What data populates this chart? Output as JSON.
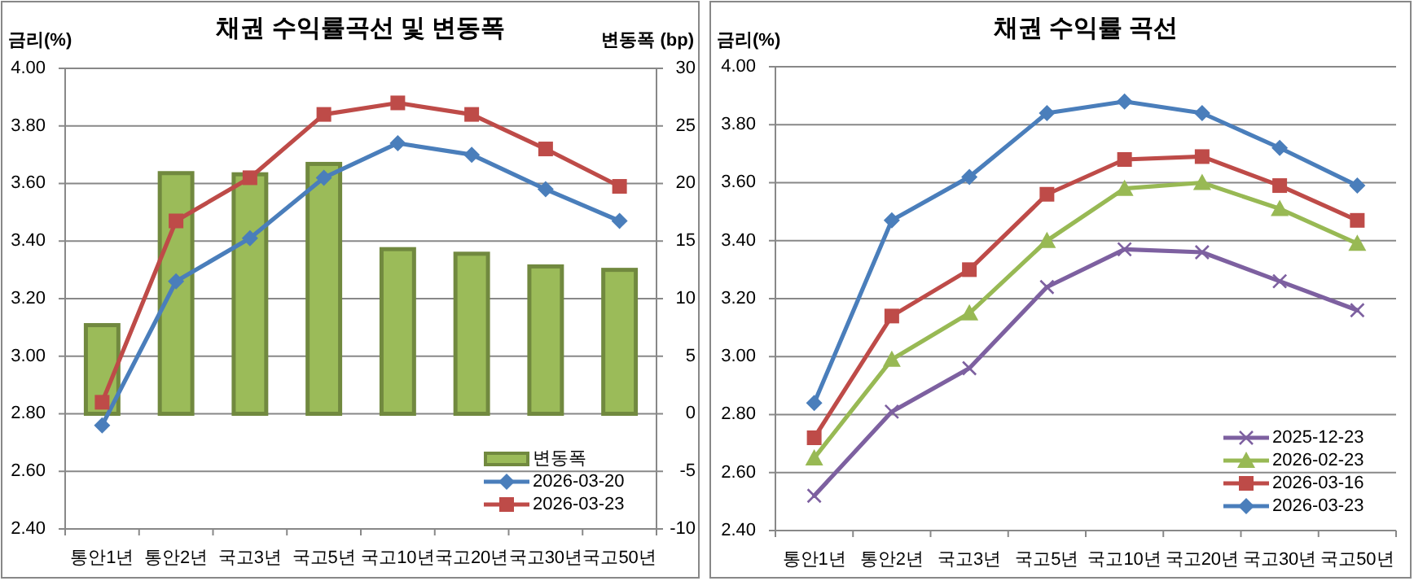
{
  "chart_data": [
    {
      "type": "line",
      "title": "채권 수익률곡선 및 변동폭",
      "ylabel": "금리(%)",
      "y2label": "변동폭 (bp)",
      "categories": [
        "통안1년",
        "통안2년",
        "국고3년",
        "국고5년",
        "국고10년",
        "국고20년",
        "국고30년",
        "국고50년"
      ],
      "ylim": [
        2.4,
        4.0
      ],
      "yticks": [
        {
          "value": 2.4,
          "label": "2.40"
        },
        {
          "value": 2.6,
          "label": "2.60"
        },
        {
          "value": 2.8,
          "label": "2.80"
        },
        {
          "value": 3.0,
          "label": "3.00"
        },
        {
          "value": 3.2,
          "label": "3.20"
        },
        {
          "value": 3.4,
          "label": "3.40"
        },
        {
          "value": 3.6,
          "label": "3.60"
        },
        {
          "value": 3.8,
          "label": "3.80"
        },
        {
          "value": 4.0,
          "label": "4.00"
        }
      ],
      "y2lim": [
        -10,
        30
      ],
      "y2ticks": [
        -10,
        -5,
        0,
        5,
        10,
        15,
        20,
        25,
        30
      ],
      "grid": "y",
      "legend": "bottom right",
      "series": [
        {
          "name": "변동폭",
          "type": "bar",
          "axis": "y2",
          "color": "#9bbb59",
          "values": [
            7.7,
            20.9,
            20.8,
            21.7,
            14.3,
            13.9,
            12.8,
            12.5
          ]
        },
        {
          "name": "2026-03-20",
          "type": "line",
          "marker": "diamond",
          "color": "#4a7ebb",
          "values": [
            2.76,
            3.26,
            3.41,
            3.62,
            3.74,
            3.7,
            3.58,
            3.47
          ]
        },
        {
          "name": "2026-03-23",
          "type": "line",
          "marker": "square",
          "color": "#be4b48",
          "values": [
            2.84,
            3.47,
            3.62,
            3.84,
            3.88,
            3.84,
            3.72,
            3.59
          ]
        }
      ]
    },
    {
      "type": "line",
      "title": "채권 수익률 곡선",
      "ylabel": "금리(%)",
      "categories": [
        "통안1년",
        "통안2년",
        "국고3년",
        "국고5년",
        "국고10년",
        "국고20년",
        "국고30년",
        "국고50년"
      ],
      "ylim": [
        2.4,
        4.0
      ],
      "yticks": [
        {
          "value": 2.4,
          "label": "2.40"
        },
        {
          "value": 2.6,
          "label": "2.60"
        },
        {
          "value": 2.8,
          "label": "2.80"
        },
        {
          "value": 3.0,
          "label": "3.00"
        },
        {
          "value": 3.2,
          "label": "3.20"
        },
        {
          "value": 3.4,
          "label": "3.40"
        },
        {
          "value": 3.6,
          "label": "3.60"
        },
        {
          "value": 3.8,
          "label": "3.80"
        },
        {
          "value": 4.0,
          "label": "4.00"
        }
      ],
      "grid": "y",
      "legend": "bottom right",
      "series": [
        {
          "name": "2025-12-23",
          "marker": "cross",
          "color": "#7d60a0",
          "values": [
            2.52,
            2.81,
            2.96,
            3.24,
            3.37,
            3.36,
            3.26,
            3.16
          ]
        },
        {
          "name": "2026-02-23",
          "marker": "triangle",
          "color": "#98b954",
          "values": [
            2.65,
            2.99,
            3.15,
            3.4,
            3.58,
            3.6,
            3.51,
            3.39
          ]
        },
        {
          "name": "2026-03-16",
          "marker": "square",
          "color": "#be4b48",
          "values": [
            2.72,
            3.14,
            3.3,
            3.56,
            3.68,
            3.69,
            3.59,
            3.47
          ]
        },
        {
          "name": "2026-03-23",
          "marker": "diamond",
          "color": "#4a7ebb",
          "values": [
            2.84,
            3.47,
            3.62,
            3.84,
            3.88,
            3.84,
            3.72,
            3.59
          ]
        }
      ]
    }
  ]
}
